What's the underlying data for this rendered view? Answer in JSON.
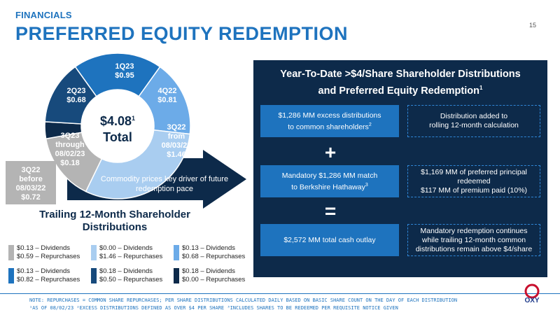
{
  "header": {
    "kicker": "FINANCIALS",
    "title": "PREFERRED EQUITY REDEMPTION",
    "page_number": "15"
  },
  "donut": {
    "center_value": "$4.08",
    "center_value_note": "1",
    "center_label": "Total",
    "segments": [
      {
        "label_line1": "1Q23",
        "label_line2": "$0.95",
        "value": 0.95,
        "color": "#1e73be"
      },
      {
        "label_line1": "4Q22",
        "label_line2": "$0.81",
        "value": 0.81,
        "color": "#6cabe8"
      },
      {
        "label_line1": "3Q22",
        "label_line2": "from",
        "label_line3": "08/03/22",
        "label_line4": "$1.46",
        "value": 1.46,
        "color": "#a9cdf0"
      },
      {
        "label_line1": "3Q22",
        "label_line2": "before",
        "label_line3": "08/03/22",
        "label_line4": "$0.72",
        "value": 0.72,
        "color": "#b4b4b4"
      },
      {
        "label_line1": "3Q23",
        "label_line2": "through",
        "label_line3": "08/02/23",
        "label_line4": "$0.18",
        "value": 0.18,
        "color": "#0d2a4a"
      },
      {
        "label_line1": "2Q23",
        "label_line2": "$0.68",
        "value": 0.68,
        "color": "#174a7c"
      }
    ]
  },
  "arrow_text": "Commodity prices key driver of future redemption pace",
  "trailing_title": "Trailing 12-Month Shareholder Distributions",
  "legend": [
    {
      "color": "#b4b4b4",
      "line1": "$0.13 – Dividends",
      "line2": "$0.59 – Repurchases"
    },
    {
      "color": "#a9cdf0",
      "line1": "$0.00 – Dividends",
      "line2": "$1.46 – Repurchases"
    },
    {
      "color": "#6cabe8",
      "line1": "$0.13 – Dividends",
      "line2": "$0.68 – Repurchases"
    },
    {
      "color": "#1e73be",
      "line1": "$0.13 – Dividends",
      "line2": "$0.82 – Repurchases"
    },
    {
      "color": "#174a7c",
      "line1": "$0.18 – Dividends",
      "line2": "$0.50 – Repurchases"
    },
    {
      "color": "#0d2a4a",
      "line1": "$0.18 – Dividends",
      "line2": "$0.00 – Repurchases"
    }
  ],
  "panel": {
    "title_line1": "Year-To-Date >$4/Share Shareholder Distributions",
    "title_line2": "and Preferred Equity Redemption",
    "title_note": "1",
    "box1_line1": "$1,286 MM excess distributions",
    "box1_line2": "to common shareholders",
    "box1_note": "2",
    "dbox1_line1": "Distribution added to",
    "dbox1_line2": "rolling 12-month calculation",
    "plus": "+",
    "box2_line1": "Mandatory $1,286 MM match",
    "box2_line2": "to Berkshire Hathaway",
    "box2_note": "3",
    "dbox2_line1": "$1,169 MM of preferred principal",
    "dbox2_line2": "redeemed",
    "dbox2_line3": "$117 MM of premium paid (10%)",
    "equals": "=",
    "box3": "$2,572 MM total cash outlay",
    "dbox3_line1": "Mandatory redemption continues",
    "dbox3_line2": "while trailing 12-month common",
    "dbox3_line3": "distributions remain above $4/share"
  },
  "footnotes": {
    "line1": "NOTE: REPURCHASES = COMMON SHARE REPURCHASES; PER SHARE DISTRIBUTIONS CALCULATED DAILY BASED ON BASIC SHARE COUNT ON THE DAY OF EACH DISTRIBUTION",
    "line2": "¹AS OF 08/02/23   ²EXCESS DISTRIBUTIONS DEFINED AS OVER $4 PER SHARE   ³INCLUDES SHARES TO BE REDEEMED PER REQUISITE NOTICE GIVEN"
  },
  "logo_text": "OXY"
}
